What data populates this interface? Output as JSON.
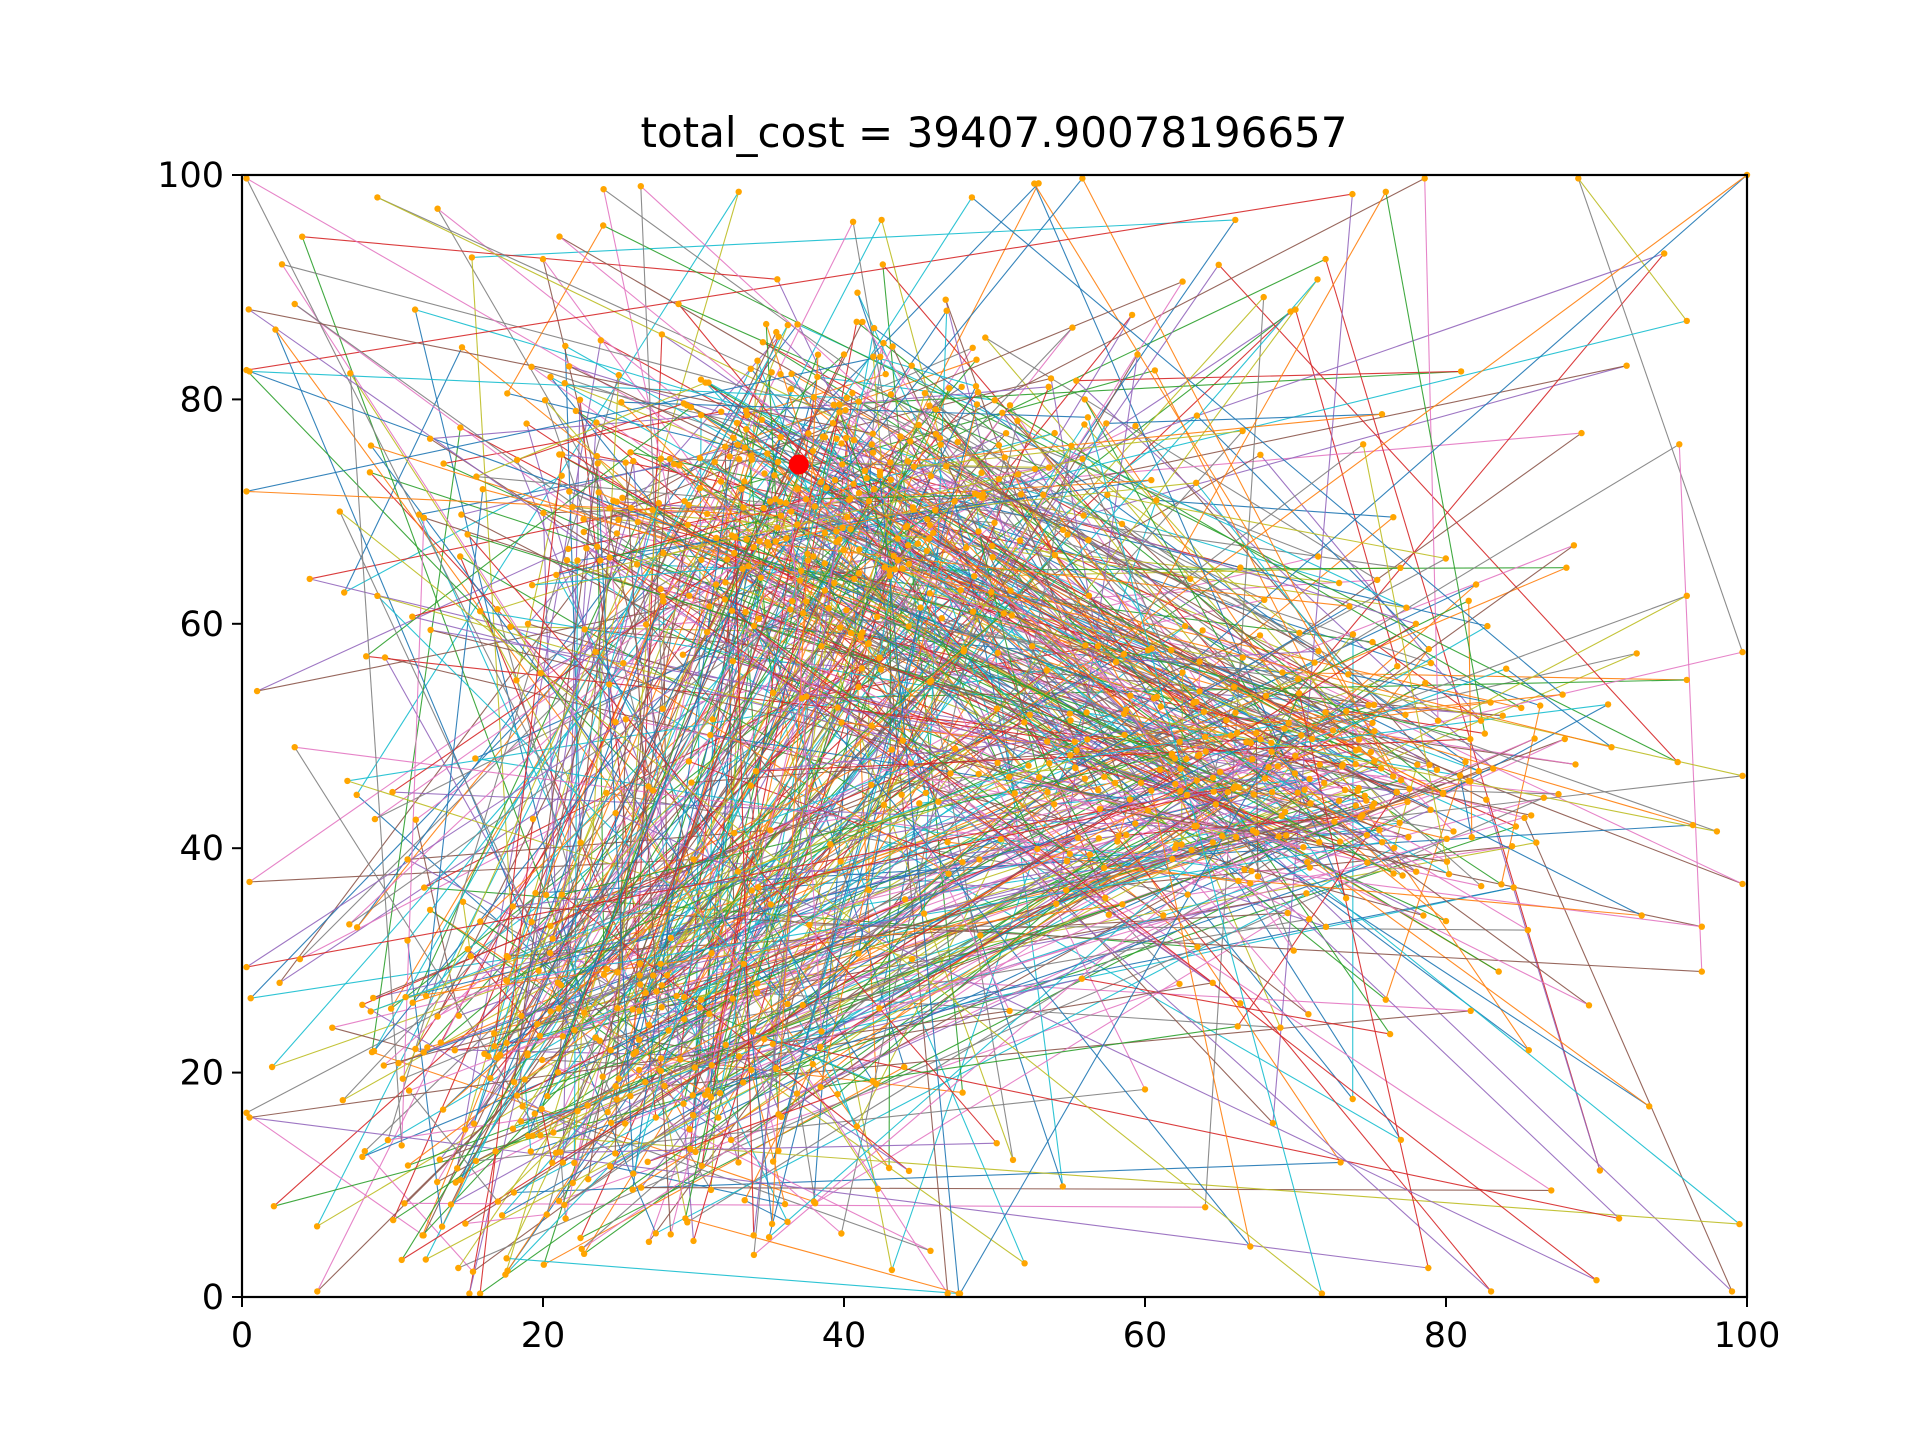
{
  "chart_data": {
    "type": "line",
    "title": "total_cost = 39407.90078196657",
    "xlabel": "",
    "ylabel": "",
    "xlim": [
      0,
      100
    ],
    "ylim": [
      0,
      100
    ],
    "x_ticks": [
      "0",
      "20",
      "40",
      "60",
      "80",
      "100"
    ],
    "y_ticks": [
      "0",
      "20",
      "40",
      "60",
      "80",
      "100"
    ],
    "grid": false,
    "legend": "none",
    "node_color": "#ffa500",
    "start_node": {
      "x": 37,
      "y": 74.2,
      "color": "#ff0000"
    },
    "edge_colors": [
      "#1f77b4",
      "#ff7f0e",
      "#2ca02c",
      "#d62728",
      "#9467bd",
      "#8c564b",
      "#e377c2",
      "#7f7f7f",
      "#bcbd22",
      "#17becf"
    ],
    "edges_approx_count": 1000,
    "route": [
      [
        37.0,
        74.2
      ],
      [
        100.0,
        100.0
      ],
      [
        99.0,
        0.5
      ],
      [
        0.5,
        82.5
      ],
      [
        98.0,
        41.5
      ],
      [
        5.0,
        0.5
      ],
      [
        0.5,
        37.0
      ],
      [
        97.0,
        29.0
      ],
      [
        1.0,
        54.0
      ],
      [
        96.0,
        87.0
      ],
      [
        0.5,
        16.0
      ],
      [
        95.5,
        76.0
      ],
      [
        9.0,
        98.0
      ],
      [
        83.0,
        0.5
      ],
      [
        13.0,
        97.0
      ],
      [
        99.5,
        6.5
      ],
      [
        26.5,
        99.0
      ],
      [
        89.5,
        26.0
      ],
      [
        3.5,
        88.5
      ],
      [
        97.0,
        33.0
      ],
      [
        4.0,
        94.5
      ],
      [
        93.5,
        17.0
      ],
      [
        2.0,
        20.5
      ],
      [
        96.0,
        62.5
      ],
      [
        3.5,
        49.0
      ],
      [
        92.0,
        83.0
      ],
      [
        48.5,
        98.0
      ],
      [
        76.0,
        98.5
      ],
      [
        12.5,
        76.5
      ],
      [
        30.0,
        5.0
      ],
      [
        66.0,
        96.0
      ],
      [
        6.5,
        70.0
      ],
      [
        91.5,
        7.0
      ],
      [
        20.0,
        92.5
      ],
      [
        88.0,
        65.0
      ],
      [
        9.0,
        62.5
      ],
      [
        77.0,
        14.0
      ],
      [
        33.0,
        98.5
      ],
      [
        96.0,
        55.0
      ],
      [
        7.0,
        46.0
      ],
      [
        81.0,
        82.5
      ],
      [
        12.0,
        5.5
      ],
      [
        89.0,
        77.0
      ],
      [
        45.5,
        66.5
      ],
      [
        17.0,
        8.5
      ],
      [
        72.0,
        92.5
      ],
      [
        8.5,
        73.5
      ],
      [
        90.0,
        1.5
      ],
      [
        28.0,
        62.0
      ],
      [
        71.0,
        44.0
      ],
      [
        38.0,
        8.5
      ],
      [
        62.5,
        90.5
      ],
      [
        21.0,
        28.0
      ],
      [
        84.0,
        56.0
      ],
      [
        17.5,
        2.0
      ],
      [
        56.0,
        80.0
      ],
      [
        10.0,
        45.0
      ],
      [
        91.0,
        49.0
      ],
      [
        24.0,
        95.5
      ],
      [
        67.0,
        4.5
      ],
      [
        14.5,
        66.0
      ],
      [
        86.0,
        40.5
      ],
      [
        31.0,
        81.5
      ],
      [
        73.0,
        12.0
      ],
      [
        6.0,
        24.0
      ],
      [
        78.0,
        60.0
      ],
      [
        42.5,
        96.0
      ],
      [
        57.0,
        43.5
      ],
      [
        11.0,
        39.0
      ],
      [
        85.5,
        22.0
      ],
      [
        35.0,
        67.0
      ],
      [
        64.0,
        8.0
      ],
      [
        2.5,
        28.0
      ],
      [
        70.0,
        88.0
      ],
      [
        23.0,
        10.5
      ],
      [
        81.5,
        46.0
      ],
      [
        40.0,
        84.0
      ],
      [
        52.0,
        3.0
      ],
      [
        19.0,
        60.0
      ],
      [
        93.0,
        34.0
      ],
      [
        27.5,
        16.0
      ],
      [
        76.5,
        69.5
      ],
      [
        47.0,
        81.0
      ],
      [
        15.0,
        31.0
      ],
      [
        66.5,
        57.0
      ],
      [
        34.0,
        5.5
      ],
      [
        88.5,
        67.0
      ],
      [
        26.0,
        74.5
      ],
      [
        58.5,
        35.0
      ],
      [
        8.0,
        12.5
      ],
      [
        74.0,
        47.5
      ],
      [
        44.0,
        20.5
      ],
      [
        94.5,
        93.0
      ],
      [
        22.5,
        40.5
      ],
      [
        63.0,
        64.0
      ],
      [
        30.5,
        26.5
      ],
      [
        80.0,
        33.5
      ],
      [
        38.5,
        58.0
      ],
      [
        11.5,
        88.0
      ],
      [
        69.0,
        24.0
      ],
      [
        50.0,
        69.0
      ],
      [
        16.5,
        19.5
      ],
      [
        85.0,
        52.5
      ],
      [
        29.0,
        88.5
      ],
      [
        60.0,
        18.5
      ],
      [
        4.5,
        64.0
      ],
      [
        77.5,
        41.0
      ],
      [
        45.0,
        44.0
      ],
      [
        20.5,
        82.0
      ],
      [
        71.5,
        66.0
      ],
      [
        32.5,
        14.0
      ],
      [
        87.0,
        9.5
      ],
      [
        25.5,
        51.5
      ],
      [
        54.0,
        77.0
      ],
      [
        13.0,
        25.0
      ],
      [
        79.0,
        56.5
      ],
      [
        36.5,
        70.0
      ],
      [
        61.0,
        47.0
      ],
      [
        18.0,
        15.0
      ],
      [
        83.5,
        29.0
      ],
      [
        41.0,
        64.5
      ],
      [
        67.5,
        37.5
      ],
      [
        9.5,
        57.0
      ],
      [
        74.5,
        76.0
      ],
      [
        28.5,
        32.0
      ],
      [
        52.5,
        58.0
      ],
      [
        35.5,
        86.0
      ],
      [
        64.5,
        28.0
      ],
      [
        15.5,
        48.0
      ],
      [
        82.0,
        63.5
      ],
      [
        43.0,
        11.5
      ],
      [
        57.5,
        71.5
      ],
      [
        24.5,
        22.0
      ],
      [
        72.5,
        50.5
      ],
      [
        39.5,
        76.5
      ],
      [
        49.0,
        39.0
      ],
      [
        21.5,
        7.0
      ],
      [
        86.5,
        44.5
      ],
      [
        31.5,
        63.5
      ],
      [
        59.5,
        84.0
      ],
      [
        12.5,
        34.5
      ],
      [
        76.0,
        26.5
      ],
      [
        46.5,
        60.5
      ],
      [
        27.0,
        45.5
      ],
      [
        68.5,
        15.5
      ],
      [
        33.5,
        79.0
      ],
      [
        55.0,
        52.0
      ],
      [
        19.5,
        36.0
      ],
      [
        80.5,
        41.5
      ],
      [
        42.0,
        72.0
      ],
      [
        62.0,
        40.0
      ],
      [
        26.0,
        11.0
      ],
      [
        84.5,
        36.5
      ],
      [
        37.5,
        62.0
      ],
      [
        51.0,
        25.5
      ],
      [
        16.0,
        72.0
      ],
      [
        73.5,
        55.5
      ],
      [
        30.0,
        39.0
      ],
      [
        65.5,
        45.0
      ],
      [
        44.5,
        83.0
      ],
      [
        23.5,
        57.5
      ],
      [
        78.5,
        34.0
      ],
      [
        37.0,
        74.2
      ]
    ]
  }
}
